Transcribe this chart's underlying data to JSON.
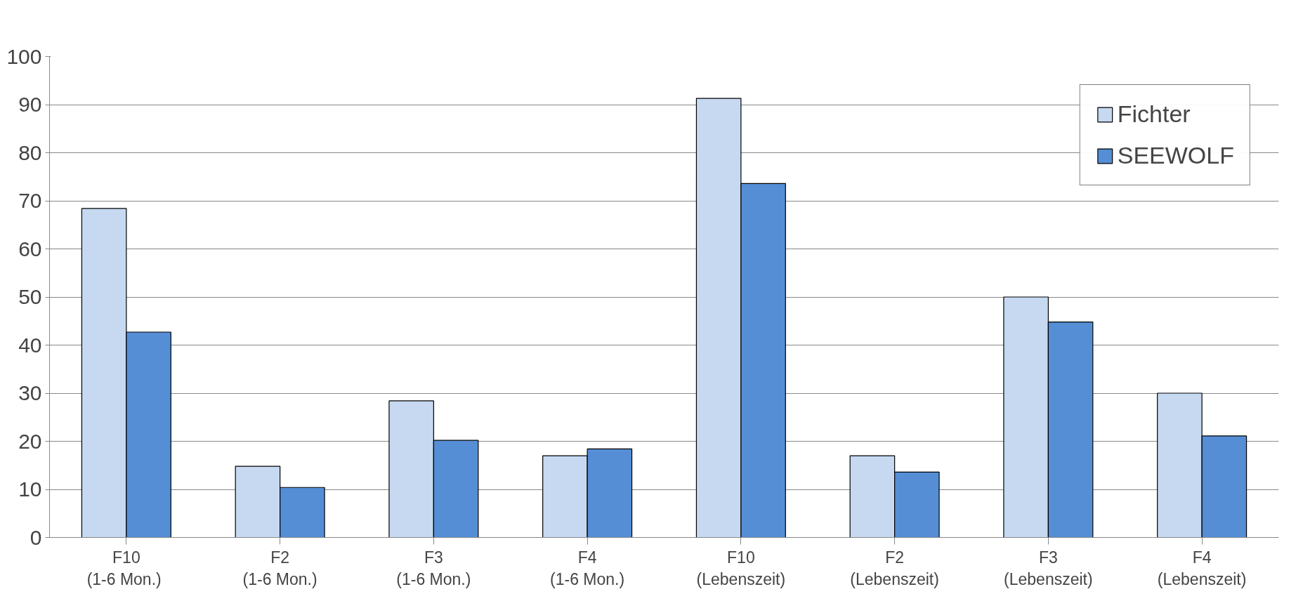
{
  "chart_data": {
    "type": "bar",
    "categories": [
      "F10\n(1-6  Mon.)",
      "F2\n(1-6 Mon.)",
      "F3\n(1-6 Mon.)",
      "F4\n(1-6 Mon.)",
      "F10\n(Lebenszeit)",
      "F2\n(Lebenszeit)",
      "F3\n(Lebenszeit)",
      "F4\n(Lebenszeit)"
    ],
    "series": [
      {
        "name": "Fichter",
        "color": "#c6d9f1",
        "values": [
          68.4,
          14.8,
          28.4,
          17.0,
          91.3,
          17.0,
          50.0,
          30.0
        ]
      },
      {
        "name": "SEEWOLF",
        "color": "#558ed5",
        "values": [
          42.7,
          10.4,
          20.2,
          18.4,
          73.6,
          13.6,
          44.8,
          21.1
        ]
      }
    ],
    "ylim": [
      0,
      100
    ],
    "yticks": [
      0,
      10,
      20,
      30,
      40,
      50,
      60,
      70,
      80,
      90,
      100
    ],
    "grid": "y",
    "legend": "top right"
  }
}
